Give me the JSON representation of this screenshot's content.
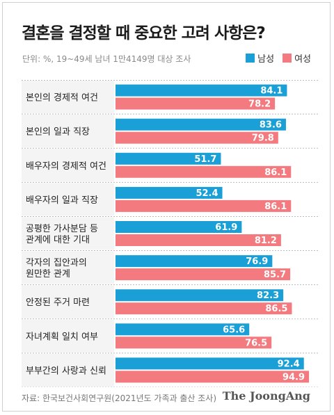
{
  "title": "결혼을 결정할 때 중요한 고려 사항은?",
  "subtitle": "단위: %, 19~49세 남녀 1만4149명 대상 조사",
  "source": "자료: 한국보건사회연구원(2021년도 가족과 출산 조사)",
  "brand": "The JoongAng",
  "colors": {
    "male": "#1aa0d6",
    "female": "#f37b80",
    "label_bg": "#f4f4f4",
    "divider": "#bdbdbd"
  },
  "chart_data": {
    "type": "bar",
    "orientation": "horizontal",
    "xlim": [
      0,
      100
    ],
    "grid": false,
    "legend_position": "top-right",
    "categories": [
      "본인의 경제적 여건",
      "본인의 일과 직장",
      "배우자의 경제적 여건",
      "배우자의 일과 직장",
      "공평한 가사분담 등\n관계에 대한 기대",
      "각자의 집안과의\n원만한 관계",
      "안정된 주거 마련",
      "자녀계획 일치 여부",
      "부부간의 사랑과 신뢰"
    ],
    "series": [
      {
        "name": "남성",
        "color": "#1aa0d6",
        "values": [
          84.1,
          83.6,
          51.7,
          52.4,
          61.9,
          76.9,
          82.3,
          65.6,
          92.4
        ]
      },
      {
        "name": "여성",
        "color": "#f37b80",
        "values": [
          78.2,
          79.8,
          86.1,
          86.1,
          81.2,
          85.7,
          86.5,
          76.5,
          94.9
        ]
      }
    ]
  }
}
